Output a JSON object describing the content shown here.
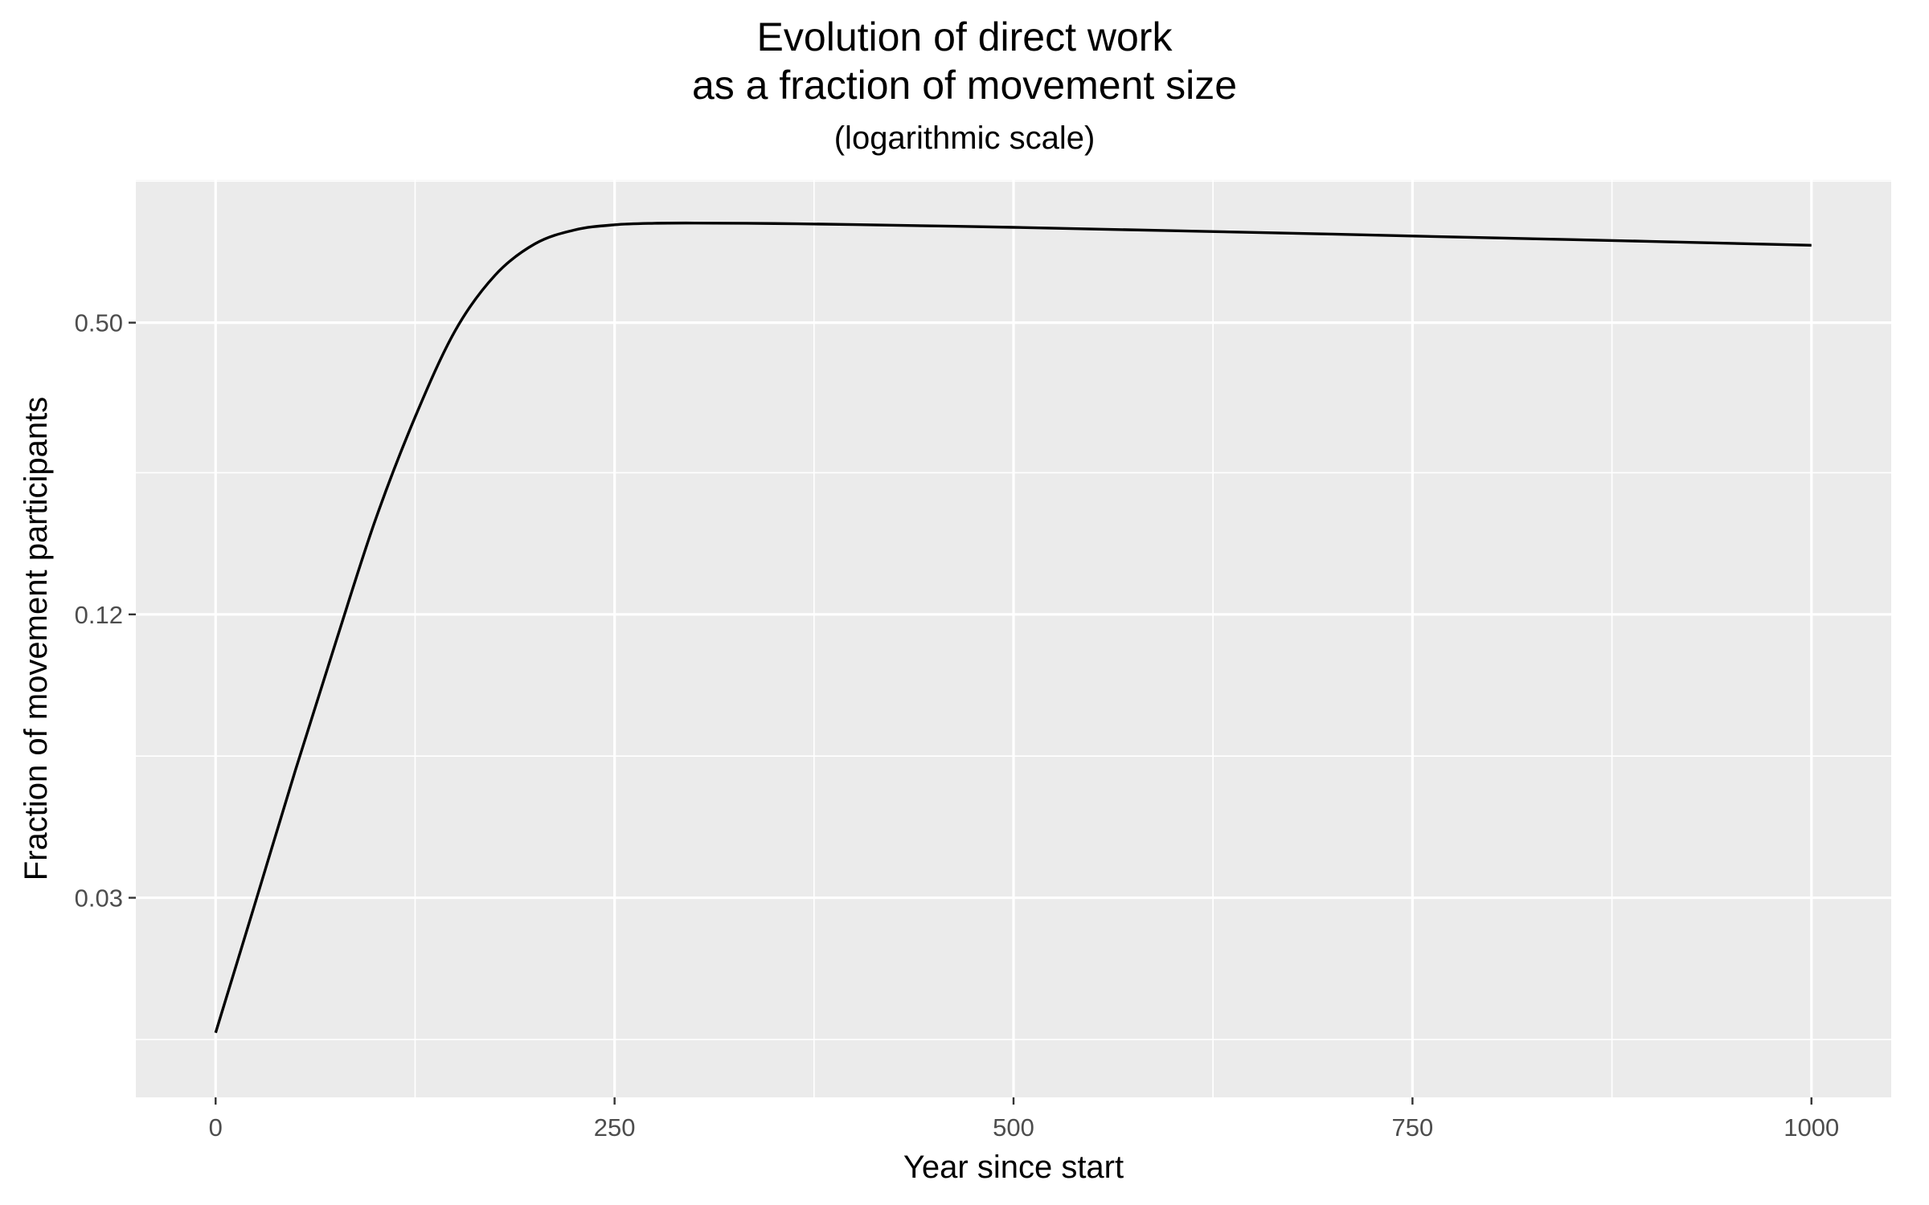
{
  "chart_data": {
    "type": "line",
    "title_line1": "Evolution of direct work",
    "title_line2": "as a fraction of movement size",
    "subtitle": "(logarithmic scale)",
    "xlabel": "Year since start",
    "ylabel": "Fraction of movement participants",
    "y_scale": "log",
    "xlim": [
      -50,
      1050
    ],
    "ylim": [
      0.0113,
      1.005
    ],
    "x_ticks": [
      0,
      250,
      500,
      750,
      1000
    ],
    "x_tick_labels": [
      "0",
      "250",
      "500",
      "750",
      "1000"
    ],
    "y_ticks": [
      0.03,
      0.12,
      0.5
    ],
    "y_tick_labels": [
      "0.03",
      "0.12",
      "0.50"
    ],
    "y_minor_gridlines": [
      0.015,
      0.06,
      0.24,
      1.0
    ],
    "x_minor_gridlines": [
      125,
      375,
      625,
      875
    ],
    "grid": true,
    "legend": "none",
    "colors": {
      "panel": "#ebebeb",
      "grid": "#ffffff",
      "line": "#000000",
      "tick_text": "#4d4d4d"
    },
    "series": [
      {
        "x": [
          0,
          25,
          50,
          75,
          100,
          125,
          150,
          175,
          200,
          225,
          250,
          275,
          300,
          350,
          400,
          500,
          600,
          700,
          800,
          900,
          1000
        ],
        "y": [
          0.0155,
          0.0294,
          0.056,
          0.104,
          0.19,
          0.315,
          0.48,
          0.63,
          0.735,
          0.787,
          0.807,
          0.813,
          0.814,
          0.812,
          0.808,
          0.797,
          0.784,
          0.771,
          0.757,
          0.744,
          0.73
        ]
      }
    ]
  }
}
